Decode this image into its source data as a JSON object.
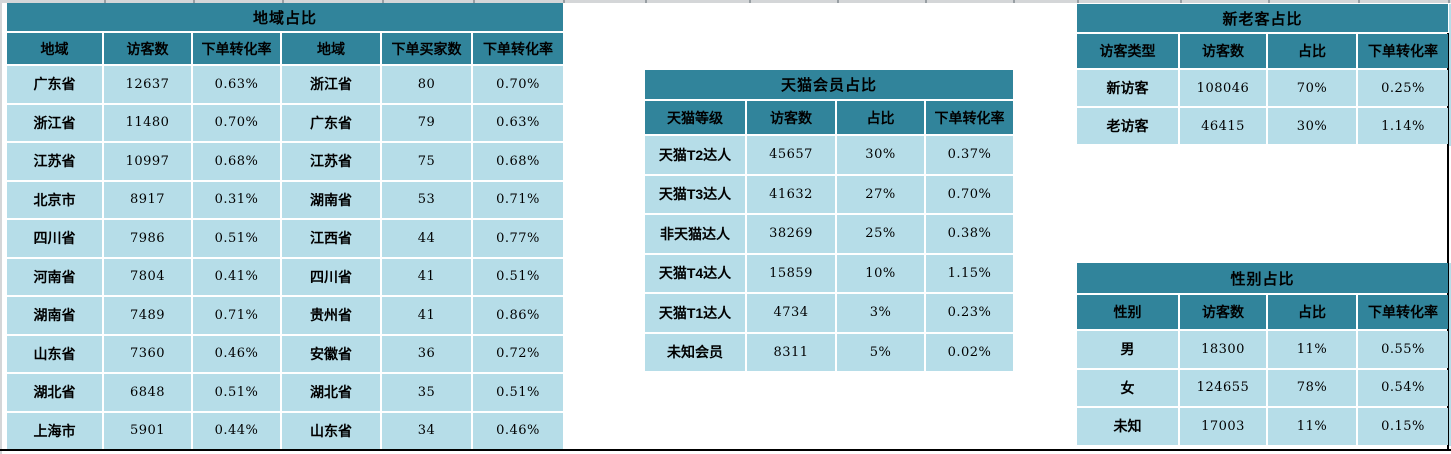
{
  "colors": {
    "header_teal": "#31849b",
    "cell_blue": "#b6dde8",
    "text": "#000000",
    "gridline_gray": "#d4d6d8",
    "border_black": "#000000"
  },
  "region_table": {
    "title": "地域占比",
    "headers": [
      "地域",
      "访客数",
      "下单转化率",
      "地域",
      "下单买家数",
      "下单转化率"
    ],
    "rows": [
      [
        "广东省",
        "12637",
        "0.63%",
        "浙江省",
        "80",
        "0.70%"
      ],
      [
        "浙江省",
        "11480",
        "0.70%",
        "广东省",
        "79",
        "0.63%"
      ],
      [
        "江苏省",
        "10997",
        "0.68%",
        "江苏省",
        "75",
        "0.68%"
      ],
      [
        "北京市",
        "8917",
        "0.31%",
        "湖南省",
        "53",
        "0.71%"
      ],
      [
        "四川省",
        "7986",
        "0.51%",
        "江西省",
        "44",
        "0.77%"
      ],
      [
        "河南省",
        "7804",
        "0.41%",
        "四川省",
        "41",
        "0.51%"
      ],
      [
        "湖南省",
        "7489",
        "0.71%",
        "贵州省",
        "41",
        "0.86%"
      ],
      [
        "山东省",
        "7360",
        "0.46%",
        "安徽省",
        "36",
        "0.72%"
      ],
      [
        "湖北省",
        "6848",
        "0.51%",
        "湖北省",
        "35",
        "0.51%"
      ],
      [
        "上海市",
        "5901",
        "0.44%",
        "山东省",
        "34",
        "0.46%"
      ]
    ]
  },
  "tmall_table": {
    "title": "天猫会员占比",
    "headers": [
      "天猫等级",
      "访客数",
      "占比",
      "下单转化率"
    ],
    "rows": [
      [
        "天猫T2达人",
        "45657",
        "30%",
        "0.37%"
      ],
      [
        "天猫T3达人",
        "41632",
        "27%",
        "0.70%"
      ],
      [
        "非天猫达人",
        "38269",
        "25%",
        "0.38%"
      ],
      [
        "天猫T4达人",
        "15859",
        "10%",
        "1.15%"
      ],
      [
        "天猫T1达人",
        "4734",
        "3%",
        "0.23%"
      ],
      [
        "未知会员",
        "8311",
        "5%",
        "0.02%"
      ]
    ]
  },
  "visitor_table": {
    "title": "新老客占比",
    "headers": [
      "访客类型",
      "访客数",
      "占比",
      "下单转化率"
    ],
    "rows": [
      [
        "新访客",
        "108046",
        "70%",
        "0.25%"
      ],
      [
        "老访客",
        "46415",
        "30%",
        "1.14%"
      ]
    ]
  },
  "gender_table": {
    "title": "性别占比",
    "headers": [
      "性别",
      "访客数",
      "占比",
      "下单转化率"
    ],
    "rows": [
      [
        "男",
        "18300",
        "11%",
        "0.55%"
      ],
      [
        "女",
        "124655",
        "78%",
        "0.54%"
      ],
      [
        "未知",
        "17003",
        "11%",
        "0.15%"
      ]
    ]
  }
}
